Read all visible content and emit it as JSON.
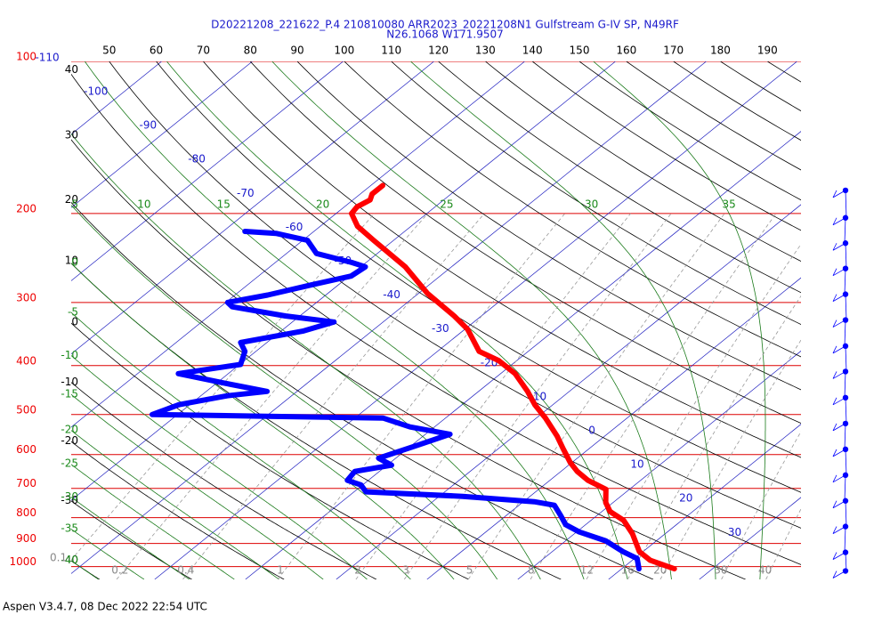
{
  "header": {
    "title": "D20221208_221622_P.4 210810080 ARR2023_20221208N1 Gulfstream G-IV SP, N49RF",
    "subtitle": "N26.1068 W171.9507"
  },
  "footer": "Aspen V3.4.7, 08 Dec 2022  22:54 UTC",
  "chart_data": {
    "type": "skewt",
    "ylog": true,
    "ylim": [
      1060,
      100
    ],
    "yticks": [
      100,
      200,
      300,
      400,
      500,
      600,
      700,
      800,
      900,
      1000
    ],
    "xlim": [
      -39.2,
      41.2
    ],
    "xticks": [
      -110,
      -100,
      -90,
      -80,
      -70,
      -60,
      -50,
      -40,
      -30,
      -20,
      -10,
      0,
      10,
      20,
      30
    ],
    "dry_adiabats": [
      -40,
      -30,
      -20,
      -10,
      0,
      10,
      20,
      30,
      40,
      50,
      60,
      70,
      80,
      90,
      100,
      110,
      120,
      130,
      140,
      150,
      160,
      170,
      180,
      190
    ],
    "moist_adiabats": [
      -40,
      -35,
      -30,
      -25,
      -20,
      -15,
      -10,
      -5,
      0,
      5,
      10,
      15,
      20,
      25,
      30,
      35
    ],
    "mixing_ratios": [
      0.1,
      0.2,
      0.4,
      1,
      2,
      3,
      5,
      8,
      12,
      16,
      20,
      30,
      40
    ],
    "series": [
      {
        "color": "#ff0000",
        "pressure": [
          1010,
          972,
          934,
          861,
          810,
          778,
          747,
          703,
          675,
          648,
          622,
          585,
          551,
          508,
          478,
          450,
          415,
          391,
          375,
          339,
          319,
          288,
          255,
          226,
          212,
          200,
          194,
          188,
          183,
          176
        ],
        "values": [
          25.8,
          22.0,
          19.6,
          16.4,
          13.6,
          10.9,
          9.2,
          7.4,
          4.2,
          1.8,
          -0.2,
          -2.8,
          -5.3,
          -9.0,
          -12.0,
          -14.6,
          -18.4,
          -22.0,
          -25.4,
          -29.7,
          -33.0,
          -39.0,
          -45.1,
          -52.2,
          -55.9,
          -58.3,
          -58.6,
          -58.1,
          -58.7,
          -58.7
        ]
      },
      {
        "color": "#0000ff",
        "pressure": [
          1010,
          964,
          934,
          889,
          854,
          826,
          794,
          756,
          744,
          726,
          711,
          689,
          675,
          648,
          630,
          610,
          574,
          547,
          529,
          508,
          504,
          500,
          478,
          459,
          450,
          436,
          415,
          398,
          375,
          360,
          342,
          328,
          319,
          306,
          300,
          290,
          277,
          266,
          255,
          250,
          240,
          226,
          219,
          217
        ],
        "values": [
          21.9,
          20.3,
          17.8,
          14.4,
          10.3,
          7.8,
          6.1,
          3.9,
          1.2,
          -7.4,
          -18.7,
          -20.2,
          -22.3,
          -22.7,
          -19.5,
          -21.9,
          -19.3,
          -17.3,
          -22.7,
          -26.9,
          -39.9,
          -52.8,
          -51.2,
          -47.1,
          -43.3,
          -48.2,
          -55.5,
          -49.9,
          -51.2,
          -52.9,
          -47.6,
          -45.4,
          -51.6,
          -58.7,
          -59.8,
          -56.4,
          -53.0,
          -49.8,
          -49.5,
          -51.6,
          -56.7,
          -59.5,
          -63.9,
          -67.6
        ]
      }
    ],
    "wind_pressure": [
      180,
      204,
      229,
      257,
      289,
      325,
      366,
      411,
      463,
      521,
      586,
      659,
      741,
      833,
      937,
      1020
    ]
  }
}
